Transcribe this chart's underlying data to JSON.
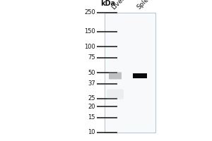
{
  "kda_labels": [
    250,
    150,
    100,
    75,
    50,
    37,
    25,
    20,
    15,
    10
  ],
  "lane_labels": [
    "Liver",
    "Spleen"
  ],
  "kda_header": "kDa",
  "background_color": "#ffffff",
  "gel_bg_color": "#f8f9fb",
  "gel_border_color": "#b0c4d8",
  "marker_line_color": "#111111",
  "band_liver_color": "#888888",
  "band_spleen_color": "#0a0a0a",
  "band_kda": 46,
  "band_liver_alpha": 0.5,
  "band_spleen_alpha": 1.0,
  "smear_liver_kda": 28,
  "smear_liver_alpha": 0.15,
  "label_fontsize": 6.0,
  "header_fontsize": 7.0,
  "lane_label_fontsize": 6.5
}
